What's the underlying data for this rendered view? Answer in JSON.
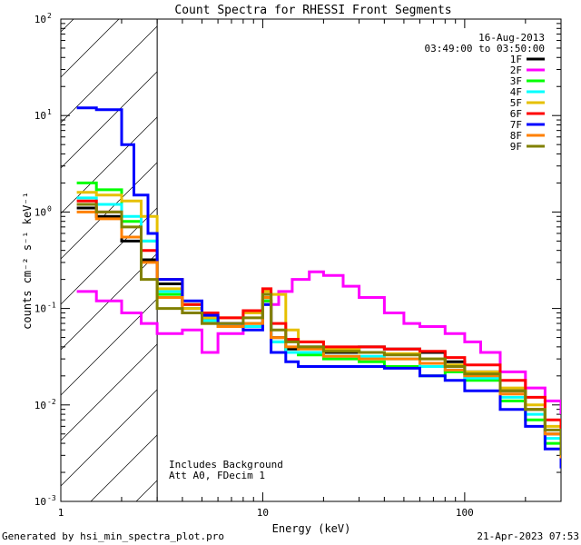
{
  "chart_data": {
    "type": "line",
    "title": "Count Spectra for RHESSI Front Segments",
    "xlabel": "Energy (keV)",
    "ylabel": "counts cm⁻² s⁻¹ keV⁻¹",
    "x_scale": "log",
    "y_scale": "log",
    "xlim": [
      1,
      300
    ],
    "ylim": [
      0.001,
      100
    ],
    "x_tick_labels": [
      {
        "v": 1,
        "label": "1"
      },
      {
        "v": 10,
        "label": "10"
      },
      {
        "v": 100,
        "label": "100"
      }
    ],
    "y_tick_labels": [
      {
        "e": 2,
        "label": "10"
      },
      {
        "e": 1,
        "label": "10"
      },
      {
        "e": 0,
        "label": "10"
      },
      {
        "e": -1,
        "label": "10"
      },
      {
        "e": -2,
        "label": "10"
      },
      {
        "e": -3,
        "label": "10"
      }
    ],
    "y_tick_exponents": [
      "2",
      "1",
      "0",
      "-1",
      "-2",
      "-3"
    ],
    "date": "16-Aug-2013",
    "time_range": "03:49:00 to 03:50:00",
    "annotations": [
      "Includes Background",
      "Att A0, FDecim 1"
    ],
    "shaded_region": {
      "x_from": 1,
      "x_to": 3,
      "description": "hatched"
    },
    "series": [
      {
        "name": "1F",
        "color": "#000000",
        "x": [
          1.2,
          1.5,
          2,
          2.5,
          3,
          4,
          5,
          6,
          8,
          10,
          11,
          13,
          15,
          20,
          30,
          40,
          60,
          80,
          100,
          150,
          200,
          250,
          300
        ],
        "y": [
          1.1,
          0.9,
          0.5,
          0.32,
          0.18,
          0.1,
          0.08,
          0.07,
          0.065,
          0.12,
          0.05,
          0.038,
          0.04,
          0.035,
          0.04,
          0.038,
          0.035,
          0.028,
          0.022,
          0.014,
          0.009,
          0.005,
          0.0025
        ]
      },
      {
        "name": "2F",
        "color": "#ff00ff",
        "x": [
          1.2,
          1.5,
          2,
          2.5,
          3,
          4,
          5,
          6,
          8,
          10,
          12,
          14,
          17,
          20,
          25,
          30,
          40,
          50,
          60,
          80,
          100,
          120,
          150,
          200,
          250,
          300
        ],
        "y": [
          0.15,
          0.12,
          0.09,
          0.07,
          0.055,
          0.06,
          0.035,
          0.055,
          0.07,
          0.11,
          0.15,
          0.2,
          0.24,
          0.22,
          0.17,
          0.13,
          0.09,
          0.07,
          0.065,
          0.055,
          0.045,
          0.035,
          0.022,
          0.015,
          0.011,
          0.008
        ]
      },
      {
        "name": "3F",
        "color": "#00ff00",
        "x": [
          1.2,
          1.5,
          2,
          2.5,
          3,
          4,
          5,
          6,
          8,
          10,
          11,
          13,
          15,
          20,
          30,
          40,
          60,
          80,
          100,
          150,
          200,
          250,
          300
        ],
        "y": [
          2.0,
          1.7,
          0.8,
          0.5,
          0.14,
          0.11,
          0.075,
          0.065,
          0.07,
          0.12,
          0.045,
          0.035,
          0.033,
          0.03,
          0.028,
          0.025,
          0.02,
          0.022,
          0.018,
          0.011,
          0.007,
          0.004,
          0.0022
        ]
      },
      {
        "name": "4F",
        "color": "#00ffff",
        "x": [
          1.2,
          1.5,
          2,
          2.5,
          3,
          4,
          5,
          6,
          8,
          10,
          11,
          13,
          15,
          20,
          30,
          40,
          60,
          80,
          100,
          150,
          200,
          250,
          300
        ],
        "y": [
          1.4,
          1.2,
          0.9,
          0.5,
          0.15,
          0.1,
          0.075,
          0.065,
          0.065,
          0.11,
          0.045,
          0.035,
          0.035,
          0.032,
          0.032,
          0.03,
          0.025,
          0.023,
          0.019,
          0.012,
          0.008,
          0.0045,
          0.0025
        ]
      },
      {
        "name": "5F",
        "color": "#e6c000",
        "x": [
          1.2,
          1.5,
          2,
          2.5,
          3,
          4,
          5,
          6,
          8,
          10,
          11,
          13,
          15,
          20,
          30,
          40,
          60,
          80,
          100,
          150,
          200,
          250,
          300
        ],
        "y": [
          1.6,
          1.5,
          1.3,
          0.9,
          0.16,
          0.1,
          0.08,
          0.08,
          0.09,
          0.15,
          0.14,
          0.06,
          0.045,
          0.038,
          0.035,
          0.034,
          0.03,
          0.026,
          0.022,
          0.015,
          0.01,
          0.006,
          0.003
        ]
      },
      {
        "name": "6F",
        "color": "#ff0000",
        "x": [
          1.2,
          1.5,
          2,
          2.5,
          3,
          4,
          5,
          6,
          8,
          10,
          11,
          13,
          15,
          20,
          30,
          40,
          60,
          80,
          100,
          150,
          200,
          250,
          300
        ],
        "y": [
          1.3,
          1.0,
          0.55,
          0.4,
          0.2,
          0.11,
          0.09,
          0.08,
          0.095,
          0.16,
          0.07,
          0.048,
          0.045,
          0.04,
          0.04,
          0.038,
          0.036,
          0.031,
          0.026,
          0.018,
          0.012,
          0.007,
          0.003
        ]
      },
      {
        "name": "7F",
        "color": "#0000ff",
        "x": [
          1.2,
          1.5,
          2,
          2.3,
          2.7,
          3,
          4,
          5,
          6,
          8,
          10,
          11,
          13,
          15,
          20,
          30,
          40,
          60,
          80,
          100,
          150,
          200,
          250,
          300
        ],
        "y": [
          12,
          11.5,
          5.0,
          1.5,
          0.6,
          0.2,
          0.12,
          0.085,
          0.07,
          0.06,
          0.11,
          0.035,
          0.028,
          0.025,
          0.025,
          0.025,
          0.024,
          0.02,
          0.018,
          0.014,
          0.009,
          0.006,
          0.0035,
          0.0022
        ]
      },
      {
        "name": "8F",
        "color": "#ff8000",
        "x": [
          1.2,
          1.5,
          2,
          2.5,
          3,
          4,
          5,
          6,
          8,
          10,
          11,
          13,
          15,
          20,
          30,
          40,
          60,
          80,
          100,
          150,
          200,
          250,
          300
        ],
        "y": [
          1.0,
          0.85,
          0.55,
          0.3,
          0.13,
          0.09,
          0.07,
          0.065,
          0.07,
          0.13,
          0.05,
          0.04,
          0.038,
          0.032,
          0.03,
          0.03,
          0.027,
          0.023,
          0.02,
          0.013,
          0.009,
          0.005,
          0.0028
        ]
      },
      {
        "name": "9F",
        "color": "#808000",
        "x": [
          1.2,
          1.5,
          2,
          2.5,
          3,
          4,
          5,
          6,
          8,
          10,
          11,
          13,
          15,
          20,
          30,
          40,
          60,
          80,
          100,
          150,
          200,
          250,
          300
        ],
        "y": [
          1.2,
          1.0,
          0.7,
          0.2,
          0.1,
          0.09,
          0.07,
          0.07,
          0.08,
          0.14,
          0.06,
          0.045,
          0.04,
          0.036,
          0.035,
          0.033,
          0.03,
          0.025,
          0.021,
          0.014,
          0.009,
          0.0055,
          0.003
        ]
      }
    ]
  },
  "footer": {
    "left": "Generated by hsi_min_spectra_plot.pro",
    "right": "21-Apr-2023 07:53"
  }
}
